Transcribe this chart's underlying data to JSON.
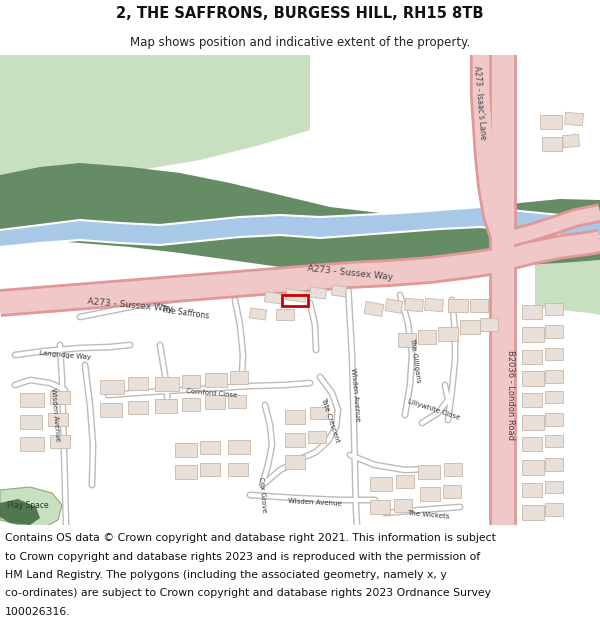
{
  "title_line1": "2, THE SAFFRONS, BURGESS HILL, RH15 8TB",
  "title_line2": "Map shows position and indicative extent of the property.",
  "title_fontsize": 10.5,
  "subtitle_fontsize": 8.5,
  "footer_text_line1": "Contains OS data © Crown copyright and database right 2021. This information is subject",
  "footer_text_line2": "to Crown copyright and database rights 2023 and is reproduced with the permission of",
  "footer_text_line3": "HM Land Registry. The polygons (including the associated geometry, namely x, y",
  "footer_text_line4": "co-ordinates) are subject to Crown copyright and database rights 2023 Ordnance Survey",
  "footer_text_line5": "100026316.",
  "footer_fontsize": 7.8,
  "map_bg": "#ffffff",
  "fig_bg": "#ffffff",
  "green_park_color": "#c8dfc0",
  "dark_green_color": "#608060",
  "blue_water_color": "#a8c8e8",
  "road_pink_color": "#f0c8c8",
  "road_pink_edge": "#e09898",
  "building_color": "#e8e0d8",
  "building_stroke": "#c8b8a8",
  "highlight_color": "#cc0000",
  "text_color": "#333333"
}
